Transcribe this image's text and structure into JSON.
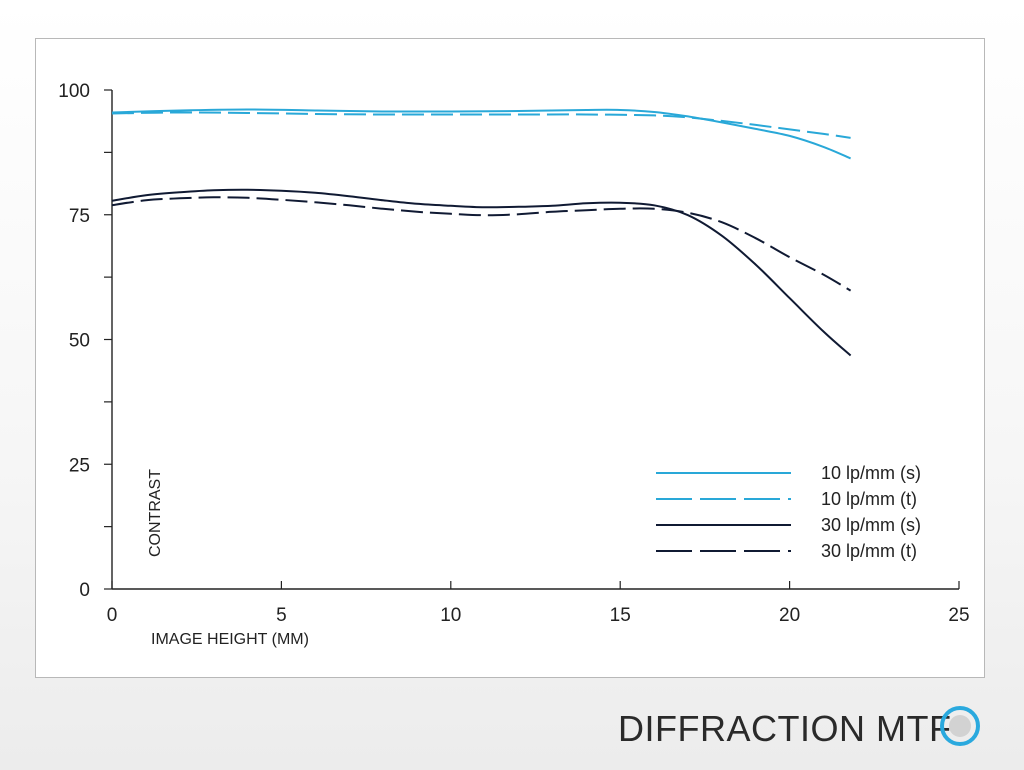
{
  "chart_data": {
    "type": "line",
    "title": "DIFFRACTION MTF",
    "xlabel": "IMAGE HEIGHT (MM)",
    "ylabel": "CONTRAST",
    "xlim": [
      0,
      25
    ],
    "ylim": [
      0,
      100
    ],
    "xticks": [
      0,
      5,
      10,
      15,
      20,
      25
    ],
    "yticks_labeled": [
      0,
      25,
      50,
      75,
      100
    ],
    "yticks_minor": [
      12.5,
      37.5,
      62.5,
      87.5
    ],
    "grid": false,
    "legend_position": "bottom-right",
    "series": [
      {
        "name": "10 lp/mm (s)",
        "color": "#29a8d8",
        "dash": "solid",
        "x": [
          0,
          2,
          4,
          6,
          8,
          10,
          12,
          14,
          15,
          16,
          17,
          18,
          19,
          20,
          21,
          21.8
        ],
        "y": [
          95.5,
          95.9,
          96.1,
          95.9,
          95.7,
          95.7,
          95.8,
          96.0,
          96.0,
          95.6,
          94.7,
          93.5,
          92.2,
          90.8,
          88.6,
          86.3
        ]
      },
      {
        "name": "10 lp/mm (t)",
        "color": "#29a8d8",
        "dash": "dashed",
        "x": [
          0,
          2,
          4,
          6,
          8,
          10,
          12,
          14,
          16,
          17,
          18,
          19,
          20,
          21,
          21.8
        ],
        "y": [
          95.3,
          95.5,
          95.4,
          95.2,
          95.1,
          95.1,
          95.1,
          95.1,
          94.9,
          94.5,
          93.8,
          93.0,
          92.1,
          91.2,
          90.4
        ]
      },
      {
        "name": "30 lp/mm (s)",
        "color": "#101a33",
        "dash": "solid",
        "x": [
          0,
          1,
          2,
          3,
          4,
          5,
          6,
          7,
          8,
          9,
          10,
          11,
          12,
          13,
          14,
          15,
          16,
          17,
          18,
          19,
          20,
          21,
          21.8
        ],
        "y": [
          77.8,
          78.9,
          79.5,
          79.9,
          80.0,
          79.8,
          79.4,
          78.7,
          77.9,
          77.2,
          76.8,
          76.5,
          76.6,
          76.8,
          77.3,
          77.4,
          76.9,
          74.9,
          70.8,
          65.0,
          58.3,
          51.6,
          46.8
        ]
      },
      {
        "name": "30 lp/mm (t)",
        "color": "#101a33",
        "dash": "dashed",
        "x": [
          0,
          1,
          2,
          3,
          4,
          5,
          6,
          7,
          8,
          9,
          10,
          11,
          12,
          13,
          14,
          15,
          16,
          17,
          18,
          19,
          20,
          21,
          21.8
        ],
        "y": [
          76.9,
          77.9,
          78.3,
          78.5,
          78.4,
          78.0,
          77.5,
          76.9,
          76.2,
          75.6,
          75.2,
          74.9,
          75.1,
          75.6,
          75.9,
          76.2,
          76.2,
          75.4,
          73.5,
          70.3,
          66.5,
          63.0,
          59.8
        ]
      }
    ]
  },
  "footer": {
    "title": "DIFFRACTION MTF",
    "icon": "radio-circle-icon",
    "icon_color": "#2aa9de"
  }
}
